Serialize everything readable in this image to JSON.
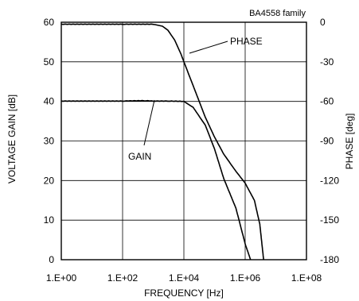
{
  "chart_data": {
    "type": "line",
    "annotation": "BA4558  family",
    "xlabel": "FREQUENCY [Hz]",
    "ylabel_left": "VOLTAGE GAIN [dB]",
    "ylabel_right": "PHASE [deg]",
    "x_scale": "log",
    "xlim": [
      1,
      100000000
    ],
    "x_ticks": [
      {
        "value": 1,
        "label": "1.E+00"
      },
      {
        "value": 100,
        "label": "1.E+02"
      },
      {
        "value": 10000,
        "label": "1.E+04"
      },
      {
        "value": 1000000,
        "label": "1.E+06"
      },
      {
        "value": 100000000,
        "label": "1.E+08"
      }
    ],
    "ylim_left": [
      0,
      60
    ],
    "y_ticks_left": [
      {
        "value": 0,
        "label": "0"
      },
      {
        "value": 10,
        "label": "10"
      },
      {
        "value": 20,
        "label": "20"
      },
      {
        "value": 30,
        "label": "30"
      },
      {
        "value": 40,
        "label": "40"
      },
      {
        "value": 50,
        "label": "50"
      },
      {
        "value": 60,
        "label": "60"
      }
    ],
    "ylim_right": [
      -180,
      0
    ],
    "y_ticks_right": [
      {
        "value": 0,
        "label": "0"
      },
      {
        "value": -30,
        "label": "-30"
      },
      {
        "value": -60,
        "label": "-60"
      },
      {
        "value": -90,
        "label": "-90"
      },
      {
        "value": -120,
        "label": "-120"
      },
      {
        "value": -150,
        "label": "-150"
      },
      {
        "value": -180,
        "label": "-180"
      }
    ],
    "grid": true,
    "series": [
      {
        "name": "GAIN",
        "axis": "left",
        "x": [
          1,
          100,
          500,
          1000,
          3000,
          10000,
          20000,
          50000,
          100000,
          200000,
          500000,
          1000000,
          1500000
        ],
        "y": [
          40.1,
          40.1,
          40.2,
          40.1,
          40.1,
          40.0,
          38.5,
          34.0,
          28.0,
          20.5,
          13.0,
          4.0,
          0
        ]
      },
      {
        "name": "PHASE",
        "axis": "right",
        "x": [
          1,
          100,
          1000,
          2000,
          3000,
          5000,
          8000,
          10000,
          20000,
          50000,
          100000,
          200000,
          500000,
          1000000,
          2000000,
          3000000,
          4000000
        ],
        "y": [
          -1.5,
          -1.5,
          -1.5,
          -3,
          -6,
          -13.5,
          -24,
          -30,
          -48,
          -72,
          -87,
          -100,
          -113,
          -122,
          -135,
          -153,
          -180
        ]
      }
    ],
    "series_labels": [
      "PHASE",
      "GAIN"
    ]
  }
}
